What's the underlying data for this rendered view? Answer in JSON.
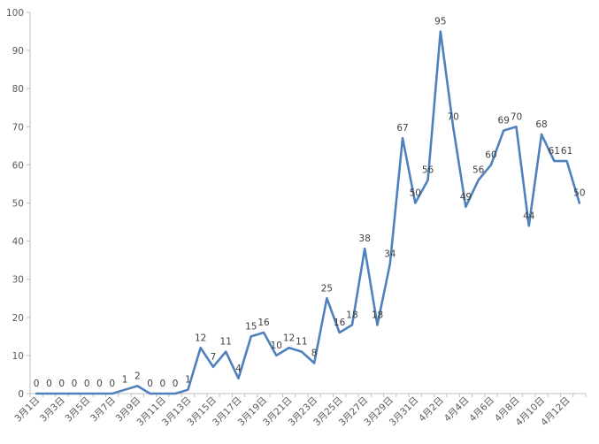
{
  "chart_data": {
    "type": "line",
    "title": "",
    "xlabel": "",
    "ylabel": "",
    "ylim": [
      0,
      100
    ],
    "yticks": [
      0,
      10,
      20,
      30,
      40,
      50,
      60,
      70,
      80,
      90,
      100
    ],
    "grid": false,
    "legend": "none",
    "line_color": "#4f81bd",
    "categories": [
      "3月1日",
      "3月2日",
      "3月3日",
      "3月4日",
      "3月5日",
      "3月6日",
      "3月7日",
      "3月8日",
      "3月9日",
      "3月10日",
      "3月11日",
      "3月12日",
      "3月13日",
      "3月14日",
      "3月15日",
      "3月16日",
      "3月17日",
      "3月18日",
      "3月19日",
      "3月20日",
      "3月21日",
      "3月22日",
      "3月23日",
      "3月24日",
      "3月25日",
      "3月26日",
      "3月27日",
      "3月28日",
      "3月29日",
      "3月30日",
      "3月31日",
      "4月1日",
      "4月2日",
      "4月3日",
      "4月4日",
      "4月5日",
      "4月6日",
      "4月7日",
      "4月8日",
      "4月9日",
      "4月10日",
      "4月11日",
      "4月12日",
      "4月13日"
    ],
    "x_tick_labels": [
      "3月1日",
      "3月3日",
      "3月5日",
      "3月7日",
      "3月9日",
      "3月11日",
      "3月13日",
      "3月15日",
      "3月17日",
      "3月19日",
      "3月21日",
      "3月23日",
      "3月25日",
      "3月27日",
      "3月29日",
      "3月31日",
      "4月2日",
      "4月4日",
      "4月6日",
      "4月8日",
      "4月10日",
      "4月12日"
    ],
    "series": [
      {
        "values": [
          0,
          0,
          0,
          0,
          0,
          0,
          0,
          1,
          2,
          0,
          0,
          0,
          1,
          12,
          7,
          11,
          4,
          15,
          16,
          10,
          12,
          11,
          8,
          25,
          16,
          18,
          38,
          18,
          34,
          67,
          50,
          56,
          95,
          70,
          49,
          56,
          60,
          69,
          70,
          44,
          68,
          61,
          61,
          50
        ]
      }
    ]
  }
}
